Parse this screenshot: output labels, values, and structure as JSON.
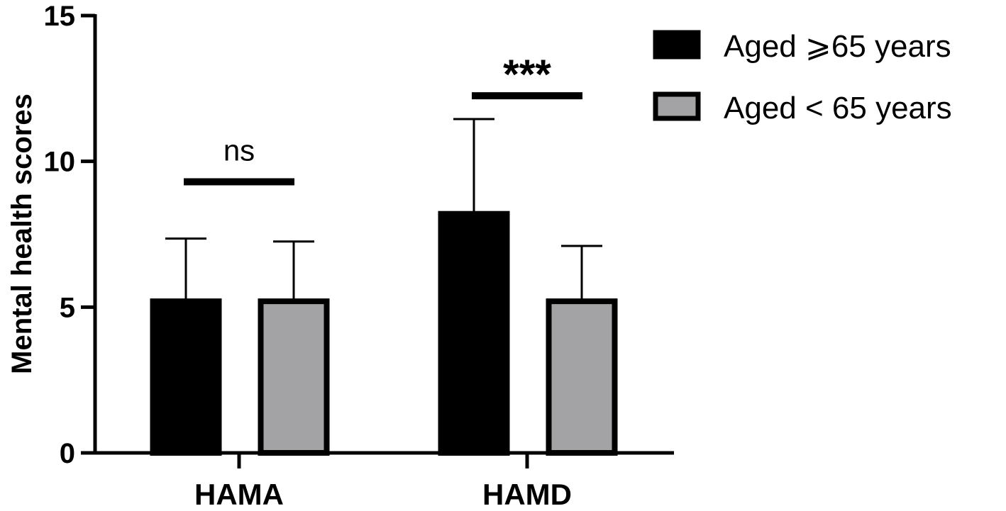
{
  "chart_data": {
    "type": "bar",
    "ylabel": "Mental health scores",
    "xlabel": "",
    "ylim": [
      0,
      15
    ],
    "yticks": [
      0,
      5,
      10,
      15
    ],
    "categories": [
      "HAMA",
      "HAMD"
    ],
    "series": [
      {
        "name": "Aged ⩾65 years",
        "color": "#000000",
        "values": [
          5.2,
          8.2
        ],
        "errors": [
          2.15,
          3.25
        ]
      },
      {
        "name": "Aged < 65 years",
        "color": "#a3a3a6",
        "values": [
          5.2,
          5.2
        ],
        "errors": [
          2.05,
          1.9
        ]
      }
    ],
    "significance": [
      {
        "category": "HAMA",
        "label": "ns",
        "bar_y": 9.3
      },
      {
        "category": "HAMD",
        "label": "***",
        "bar_y": 12.25
      }
    ],
    "legend_position": "top-right",
    "grid": false
  }
}
